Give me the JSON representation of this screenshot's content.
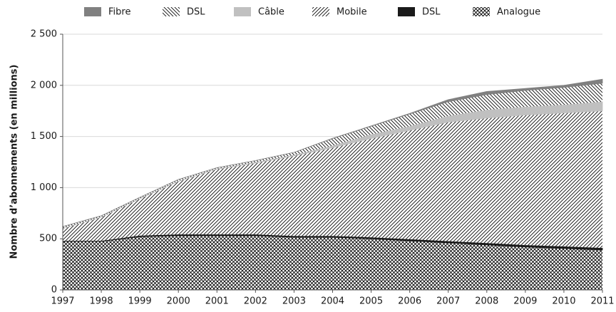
{
  "chart_data": {
    "type": "stacked_area",
    "ylabel": "Nombre d’abonnements (en millions)",
    "x": [
      1997,
      1998,
      1999,
      2000,
      2001,
      2002,
      2003,
      2004,
      2005,
      2006,
      2007,
      2008,
      2009,
      2010,
      2011
    ],
    "xlim": [
      1997,
      2011
    ],
    "xticks": [
      1997,
      1998,
      1999,
      2000,
      2001,
      2002,
      2003,
      2004,
      2005,
      2006,
      2007,
      2008,
      2009,
      2010,
      2011
    ],
    "ylim": [
      0,
      2500
    ],
    "yticks": [
      0,
      {
        "value": 500,
        "label": "500"
      },
      {
        "value": 1000,
        "label": "1 000"
      },
      {
        "value": 1500,
        "label": "1 500"
      },
      {
        "value": 2000,
        "label": "2 000"
      },
      {
        "value": 2500,
        "label": "2 500"
      }
    ],
    "grid": true,
    "legend": "top",
    "series": [
      {
        "name": "Analogue",
        "color": "#000000",
        "pattern": "cross",
        "values": [
          475,
          475,
          520,
          530,
          530,
          530,
          515,
          515,
          500,
          480,
          460,
          440,
          420,
          405,
          390
        ]
      },
      {
        "name": "DSL",
        "color": "#1a1a1a",
        "pattern": "solid",
        "values": [
          5,
          5,
          10,
          12,
          12,
          12,
          12,
          12,
          14,
          15,
          16,
          18,
          18,
          20,
          20
        ]
      },
      {
        "name": "Mobile",
        "color": "#000000",
        "pattern": "forward",
        "values": [
          120,
          230,
          360,
          518,
          638,
          698,
          783,
          863,
          966,
          1065,
          1164,
          1222,
          1272,
          1305,
          1340
        ]
      },
      {
        "name": "Câble",
        "color": "#c0c0c0",
        "pattern": "solid",
        "values": [
          3,
          3,
          4,
          5,
          6,
          8,
          10,
          20,
          40,
          40,
          60,
          80,
          80,
          80,
          90
        ]
      },
      {
        "name": "DSL",
        "color": "#000000",
        "pattern": "backward",
        "values": [
          17,
          12,
          11,
          15,
          9,
          17,
          25,
          70,
          80,
          120,
          140,
          150,
          160,
          170,
          180
        ]
      },
      {
        "name": "Fibre",
        "color": "#808080",
        "pattern": "solid",
        "values": [
          0,
          0,
          0,
          0,
          0,
          0,
          0,
          2,
          3,
          5,
          20,
          30,
          20,
          20,
          40
        ]
      }
    ]
  }
}
